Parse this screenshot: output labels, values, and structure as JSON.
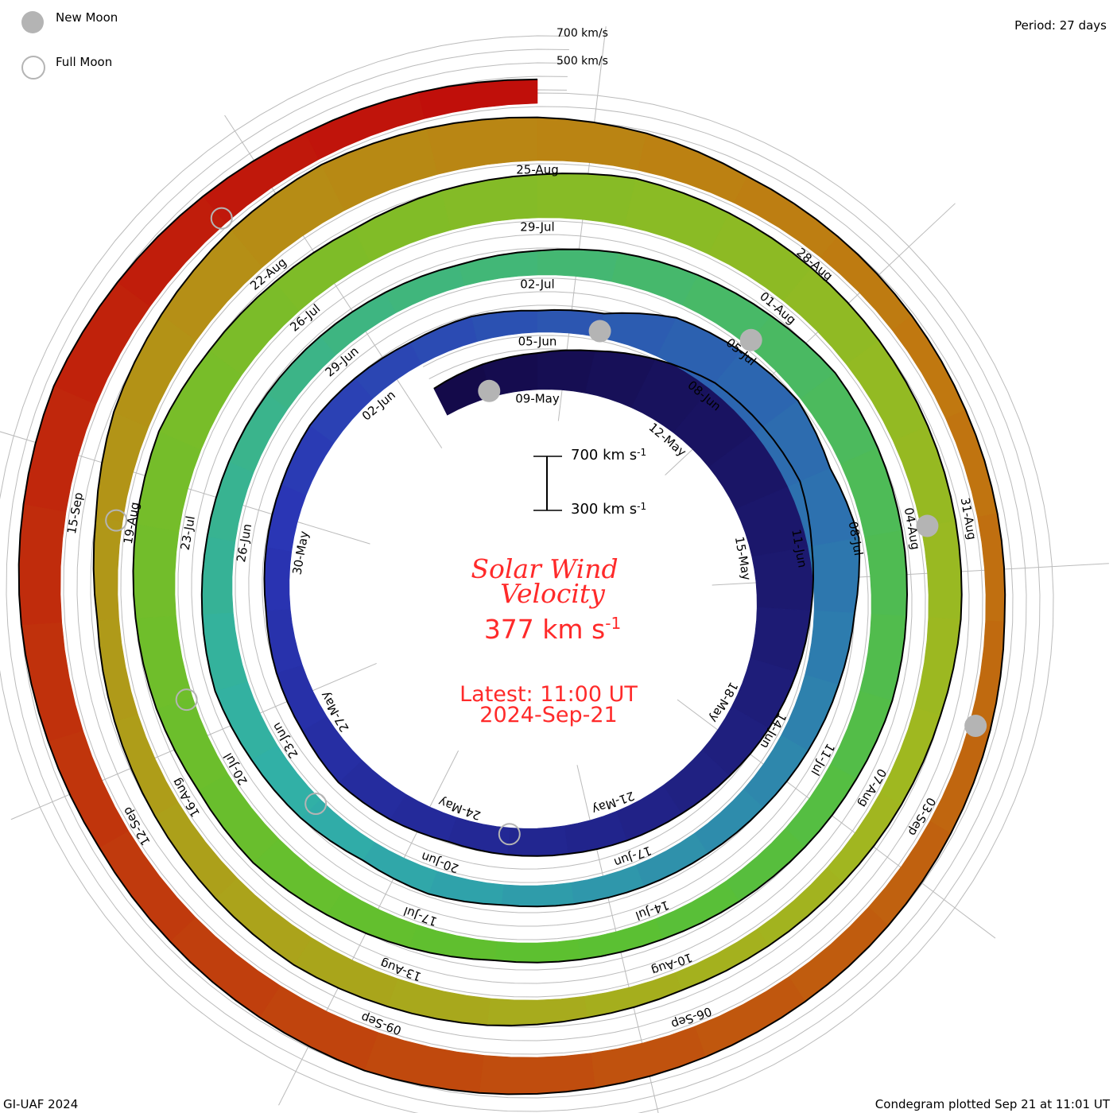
{
  "legend": {
    "new_moon": "New Moon",
    "full_moon": "Full Moon"
  },
  "period": "Period: 27 days",
  "footer_left": "GI-UAF 2024",
  "footer_right": "Condegram plotted Sep 21 at 11:01 UT",
  "scale_labels": {
    "top_700": "700 km/s",
    "top_500": "500 km/s",
    "bar_high": "700 km s",
    "bar_low": "300 km s",
    "exp": "-1"
  },
  "center": {
    "title_line1": "Solar Wind",
    "title_line2": "Velocity",
    "current_value": "377 km s",
    "exp": "-1",
    "latest": "Latest: 11:00 UT",
    "date": "2024-Sep-21"
  },
  "chart_data": {
    "type": "condegram-spiral",
    "title": "Solar Wind Velocity",
    "units": "km/s",
    "period_days": 27,
    "start_date": "2024-05-07",
    "end": "2024-09-21 11:00 UT",
    "latest_value": 377,
    "scale_range": [
      300,
      700
    ],
    "daily_values": [
      420,
      450,
      470,
      520,
      600,
      680,
      700,
      720,
      650,
      600,
      560,
      520,
      480,
      450,
      430,
      410,
      400,
      390,
      420,
      440,
      410,
      400,
      380,
      390,
      400,
      420,
      400,
      380,
      390,
      360,
      380,
      520,
      560,
      600,
      540,
      580,
      500,
      460,
      430,
      400,
      380,
      370,
      360,
      350,
      380,
      360,
      400,
      420,
      450,
      430,
      410,
      400,
      390,
      380,
      370,
      360,
      380,
      420,
      450,
      480,
      520,
      500,
      480,
      460,
      450,
      420,
      400,
      380,
      360,
      350,
      340,
      380,
      420,
      460,
      450,
      480,
      500,
      520,
      540,
      500,
      480,
      470,
      500,
      520,
      560,
      540,
      520,
      500,
      480,
      460,
      440,
      400,
      380,
      360,
      350,
      340,
      360,
      400,
      420,
      440,
      420,
      400,
      380,
      360,
      400,
      480,
      520,
      560,
      580,
      550,
      520,
      480,
      420,
      400,
      380,
      360,
      350,
      340,
      360,
      380,
      400,
      420,
      440,
      460,
      480,
      500,
      480,
      460,
      450,
      470,
      500,
      520,
      540,
      500,
      460,
      420,
      400,
      377
    ],
    "date_ticks": [
      "09-May",
      "12-May",
      "15-May",
      "18-May",
      "21-May",
      "24-May",
      "27-May",
      "30-May",
      "02-Jun",
      "05-Jun",
      "08-Jun",
      "11-Jun",
      "14-Jun",
      "17-Jun",
      "20-Jun",
      "23-Jun",
      "26-Jun",
      "29-Jun",
      "02-Jul",
      "05-Jul",
      "08-Jul",
      "11-Jul",
      "14-Jul",
      "17-Jul",
      "20-Jul",
      "23-Jul",
      "26-Jul",
      "29-Jul",
      "01-Aug",
      "04-Aug",
      "07-Aug",
      "10-Aug",
      "13-Aug",
      "16-Aug",
      "19-Aug",
      "22-Aug",
      "25-Aug",
      "28-Aug",
      "31-Aug",
      "03-Sep",
      "06-Sep",
      "09-Sep",
      "12-Sep",
      "15-Sep"
    ],
    "new_moons": [
      "2024-05-08",
      "2024-06-06",
      "2024-07-05",
      "2024-08-04",
      "2024-09-02"
    ],
    "full_moons": [
      "2024-05-23",
      "2024-06-22",
      "2024-07-21",
      "2024-08-19",
      "2024-09-18"
    ],
    "colors": {
      "start": "#140a4a",
      "mid1": "#2a35b5",
      "mid2": "#30b0a8",
      "mid3": "#5cc030",
      "mid4": "#a0b820",
      "mid5": "#c07810",
      "end": "#c00a0a",
      "moon": "#b4b4b4",
      "text_red": "#ff2a2a"
    }
  }
}
